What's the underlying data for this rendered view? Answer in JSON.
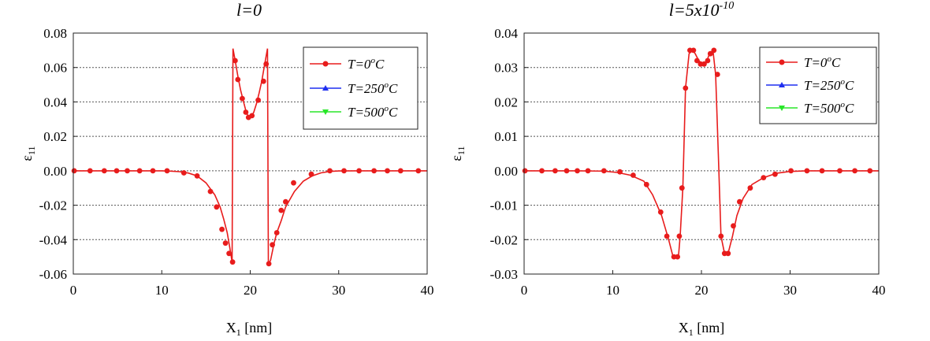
{
  "chart_data": [
    {
      "type": "line",
      "title": "l=0",
      "xlabel_main": "X",
      "xlabel_sub": "1",
      "xlabel_unit": " [nm]",
      "ylabel_main": "ε",
      "ylabel_sub": "11",
      "xlim": [
        0,
        40
      ],
      "ylim": [
        -0.06,
        0.08
      ],
      "xticks": [
        0,
        10,
        20,
        30,
        40
      ],
      "xtick_labels": [
        "0",
        "10",
        "20",
        "30",
        "40"
      ],
      "yticks": [
        -0.06,
        -0.04,
        -0.02,
        0,
        0.02,
        0.04,
        0.06,
        0.08
      ],
      "ytick_labels": [
        "-0.06",
        "-0.04",
        "-0.02",
        "0.00",
        "0.02",
        "0.04",
        "0.06",
        "0.08"
      ],
      "grid": "horizontal dotted",
      "legend_position": "top-right",
      "legend": [
        {
          "label_main": "T=0",
          "label_sup": "o",
          "label_end": "C",
          "color": "#e81c1c",
          "marker": "circle"
        },
        {
          "label_main": "T=250",
          "label_sup": "o",
          "label_end": "C",
          "color": "#1f2ff0",
          "marker": "triangle-up"
        },
        {
          "label_main": "T=500",
          "label_sup": "o",
          "label_end": "C",
          "color": "#28e628",
          "marker": "triangle-down"
        }
      ],
      "line_color": "#e81c1c",
      "marker_color": "#e81c1c",
      "curve": [
        [
          0,
          0
        ],
        [
          4,
          0
        ],
        [
          8,
          0
        ],
        [
          10,
          0
        ],
        [
          11,
          -0.0002
        ],
        [
          12,
          -0.0005
        ],
        [
          13,
          -0.0013
        ],
        [
          14,
          -0.003
        ],
        [
          15,
          -0.007
        ],
        [
          16,
          -0.014
        ],
        [
          16.6,
          -0.021
        ],
        [
          17,
          -0.028
        ],
        [
          17.4,
          -0.036
        ],
        [
          17.7,
          -0.045
        ],
        [
          17.95,
          -0.053
        ],
        [
          18.05,
          0.071
        ],
        [
          18.3,
          0.064
        ],
        [
          18.6,
          0.055
        ],
        [
          18.9,
          0.047
        ],
        [
          19.2,
          0.041
        ],
        [
          19.5,
          0.035
        ],
        [
          19.8,
          0.031
        ],
        [
          20.1,
          0.031
        ],
        [
          20.4,
          0.034
        ],
        [
          20.7,
          0.039
        ],
        [
          21,
          0.045
        ],
        [
          21.3,
          0.052
        ],
        [
          21.6,
          0.061
        ],
        [
          21.95,
          0.071
        ],
        [
          22.05,
          -0.054
        ],
        [
          22.3,
          -0.052
        ],
        [
          22.7,
          -0.042
        ],
        [
          23,
          -0.036
        ],
        [
          23.5,
          -0.029
        ],
        [
          24,
          -0.021
        ],
        [
          25,
          -0.012
        ],
        [
          26,
          -0.006
        ],
        [
          27,
          -0.003
        ],
        [
          28,
          -0.0012
        ],
        [
          29,
          -0.0004
        ],
        [
          30,
          -0.0001
        ],
        [
          32,
          0
        ],
        [
          40,
          0
        ]
      ],
      "markers": [
        [
          0.1,
          0
        ],
        [
          1.9,
          0
        ],
        [
          3.5,
          0
        ],
        [
          4.9,
          0
        ],
        [
          6.1,
          0
        ],
        [
          7.5,
          0
        ],
        [
          9,
          0
        ],
        [
          10.6,
          0
        ],
        [
          12.5,
          -0.0012
        ],
        [
          14,
          -0.003
        ],
        [
          15.5,
          -0.012
        ],
        [
          16.2,
          -0.021
        ],
        [
          16.8,
          -0.034
        ],
        [
          17.2,
          -0.042
        ],
        [
          17.6,
          -0.048
        ],
        [
          18,
          -0.053
        ],
        [
          18.3,
          0.064
        ],
        [
          18.6,
          0.053
        ],
        [
          19.1,
          0.042
        ],
        [
          19.5,
          0.034
        ],
        [
          19.8,
          0.031
        ],
        [
          20.2,
          0.032
        ],
        [
          20.9,
          0.041
        ],
        [
          21.5,
          0.052
        ],
        [
          21.8,
          0.062
        ],
        [
          22.1,
          -0.054
        ],
        [
          22.5,
          -0.043
        ],
        [
          23,
          -0.036
        ],
        [
          23.5,
          -0.023
        ],
        [
          24,
          -0.018
        ],
        [
          24.9,
          -0.007
        ],
        [
          26.9,
          -0.002
        ],
        [
          29,
          0
        ],
        [
          30.6,
          0
        ],
        [
          32.3,
          0
        ],
        [
          34,
          0
        ],
        [
          35.5,
          0
        ],
        [
          37,
          0
        ],
        [
          39,
          0
        ]
      ]
    },
    {
      "type": "line",
      "title_main": "l=5x10",
      "title_sup": "-10",
      "xlabel_main": "X",
      "xlabel_sub": "1",
      "xlabel_unit": " [nm]",
      "ylabel_main": "ε",
      "ylabel_sub": "11",
      "xlim": [
        0,
        40
      ],
      "ylim": [
        -0.03,
        0.04
      ],
      "xticks": [
        0,
        10,
        20,
        30,
        40
      ],
      "xtick_labels": [
        "0",
        "10",
        "20",
        "30",
        "40"
      ],
      "yticks": [
        -0.03,
        -0.02,
        -0.01,
        0,
        0.01,
        0.02,
        0.03,
        0.04
      ],
      "ytick_labels": [
        "-0.03",
        "-0.02",
        "-0.01",
        "0.00",
        "0.01",
        "0.02",
        "0.03",
        "0.04"
      ],
      "grid": "horizontal dotted",
      "legend_position": "top-right",
      "legend": [
        {
          "label_main": "T=0",
          "label_sup": "o",
          "label_end": "C",
          "color": "#e81c1c",
          "marker": "circle"
        },
        {
          "label_main": "T=250",
          "label_sup": "o",
          "label_end": "C",
          "color": "#1f2ff0",
          "marker": "triangle-up"
        },
        {
          "label_main": "T=500",
          "label_sup": "o",
          "label_end": "C",
          "color": "#28e628",
          "marker": "triangle-down"
        }
      ],
      "line_color": "#e81c1c",
      "marker_color": "#e81c1c",
      "curve": [
        [
          0,
          0
        ],
        [
          6,
          0
        ],
        [
          9,
          -0.0001
        ],
        [
          10.5,
          -0.0005
        ],
        [
          12,
          -0.0013
        ],
        [
          13.5,
          -0.003
        ],
        [
          14.5,
          -0.007
        ],
        [
          15.5,
          -0.013
        ],
        [
          16.3,
          -0.02
        ],
        [
          16.8,
          -0.025
        ],
        [
          17.4,
          -0.025
        ],
        [
          17.6,
          -0.019
        ],
        [
          17.9,
          -0.005
        ],
        [
          18.2,
          0.024
        ],
        [
          18.6,
          0.034
        ],
        [
          19,
          0.035
        ],
        [
          19.3,
          0.034
        ],
        [
          19.7,
          0.032
        ],
        [
          20.1,
          0.031
        ],
        [
          20.5,
          0.031
        ],
        [
          20.9,
          0.034
        ],
        [
          21.3,
          0.035
        ],
        [
          21.6,
          0.028
        ],
        [
          21.9,
          0.005
        ],
        [
          22.2,
          -0.019
        ],
        [
          22.6,
          -0.024
        ],
        [
          23,
          -0.024
        ],
        [
          23.5,
          -0.019
        ],
        [
          24,
          -0.013
        ],
        [
          24.7,
          -0.008
        ],
        [
          25.7,
          -0.004
        ],
        [
          27,
          -0.002
        ],
        [
          28.5,
          -0.0007
        ],
        [
          30,
          -0.0002
        ],
        [
          32,
          0
        ],
        [
          40,
          0
        ]
      ],
      "markers": [
        [
          0.1,
          0
        ],
        [
          2,
          0
        ],
        [
          3.5,
          0
        ],
        [
          4.8,
          0
        ],
        [
          6,
          0
        ],
        [
          7.2,
          0
        ],
        [
          9,
          0
        ],
        [
          10.8,
          -0.0003
        ],
        [
          12.3,
          -0.0013
        ],
        [
          13.8,
          -0.004
        ],
        [
          15.4,
          -0.012
        ],
        [
          16.1,
          -0.019
        ],
        [
          16.9,
          -0.025
        ],
        [
          17.3,
          -0.025
        ],
        [
          17.5,
          -0.019
        ],
        [
          17.8,
          -0.005
        ],
        [
          18.2,
          0.024
        ],
        [
          18.7,
          0.035
        ],
        [
          19.1,
          0.035
        ],
        [
          19.5,
          0.032
        ],
        [
          19.9,
          0.031
        ],
        [
          20.3,
          0.031
        ],
        [
          20.7,
          0.032
        ],
        [
          21,
          0.034
        ],
        [
          21.4,
          0.035
        ],
        [
          21.8,
          0.028
        ],
        [
          22.2,
          -0.019
        ],
        [
          22.6,
          -0.024
        ],
        [
          23,
          -0.024
        ],
        [
          23.6,
          -0.016
        ],
        [
          24.3,
          -0.009
        ],
        [
          25.5,
          -0.005
        ],
        [
          27,
          -0.002
        ],
        [
          28.3,
          -0.001
        ],
        [
          30.1,
          0
        ],
        [
          31.9,
          0
        ],
        [
          33.6,
          0
        ],
        [
          35.6,
          0
        ],
        [
          37.3,
          0
        ],
        [
          39,
          0
        ]
      ]
    }
  ]
}
